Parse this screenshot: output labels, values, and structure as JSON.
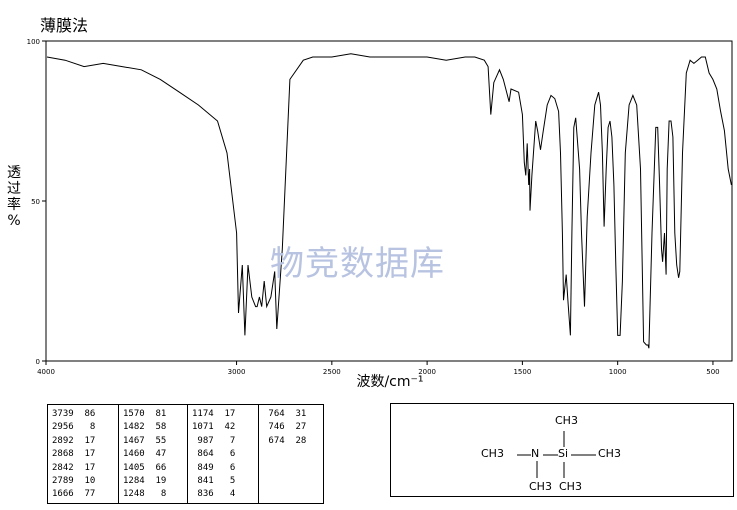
{
  "title": "薄膜法",
  "watermark": "物竞数据库",
  "chart_data": {
    "type": "line",
    "xlabel": "波数/cm⁻¹",
    "ylabel": "透过率%",
    "xlim": [
      4000,
      400
    ],
    "ylim": [
      0,
      100
    ],
    "x_ticks": [
      4000,
      3000,
      2500,
      2000,
      1500,
      1000,
      500
    ],
    "y_ticks": [
      0,
      50,
      100
    ],
    "grid": false,
    "series": [
      {
        "x": [
          3995,
          3900,
          3800,
          3700,
          3600,
          3500,
          3400,
          3300,
          3200,
          3100,
          3050,
          3000,
          2990,
          2970,
          2956,
          2940,
          2920,
          2900,
          2892,
          2880,
          2868,
          2855,
          2842,
          2820,
          2800,
          2789,
          2760,
          2720,
          2650,
          2600,
          2500,
          2400,
          2300,
          2200,
          2100,
          2000,
          1900,
          1800,
          1750,
          1700,
          1680,
          1666,
          1650,
          1620,
          1600,
          1570,
          1560,
          1520,
          1500,
          1490,
          1482,
          1475,
          1467,
          1462,
          1460,
          1450,
          1430,
          1420,
          1405,
          1390,
          1370,
          1350,
          1330,
          1310,
          1300,
          1290,
          1284,
          1270,
          1260,
          1248,
          1240,
          1230,
          1220,
          1200,
          1190,
          1174,
          1160,
          1140,
          1120,
          1100,
          1090,
          1080,
          1071,
          1060,
          1050,
          1040,
          1030,
          1020,
          1010,
          1000,
          987,
          975,
          960,
          940,
          920,
          900,
          880,
          864,
          849,
          841,
          836,
          820,
          800,
          790,
          780,
          770,
          764,
          754,
          746,
          740,
          730,
          720,
          710,
          700,
          690,
          680,
          674,
          660,
          640,
          620,
          600,
          580,
          560,
          540,
          520,
          500,
          480,
          460,
          440,
          420,
          403
        ],
        "y": [
          95,
          94,
          92,
          93,
          92,
          91,
          88,
          84,
          80,
          75,
          65,
          40,
          15,
          30,
          8,
          30,
          20,
          17,
          17,
          20,
          17,
          25,
          17,
          20,
          28,
          10,
          35,
          88,
          94,
          95,
          95,
          96,
          95,
          95,
          95,
          95,
          94,
          95,
          95,
          94,
          92,
          77,
          87,
          91,
          88,
          81,
          85,
          84,
          77,
          62,
          58,
          68,
          55,
          60,
          47,
          58,
          75,
          72,
          66,
          72,
          80,
          83,
          82,
          78,
          65,
          40,
          19,
          27,
          18,
          8,
          40,
          73,
          76,
          60,
          40,
          17,
          45,
          65,
          80,
          84,
          80,
          65,
          42,
          60,
          73,
          75,
          70,
          55,
          30,
          8,
          8,
          25,
          65,
          80,
          83,
          80,
          60,
          6,
          5,
          5,
          4,
          40,
          73,
          73,
          55,
          35,
          31,
          40,
          27,
          60,
          75,
          75,
          70,
          40,
          30,
          26,
          28,
          65,
          90,
          94,
          93,
          94,
          95,
          95,
          90,
          88,
          85,
          78,
          72,
          60,
          55
        ]
      }
    ],
    "peaks": [
      [
        3739,
        86
      ],
      [
        2956,
        8
      ],
      [
        2892,
        17
      ],
      [
        2868,
        17
      ],
      [
        2842,
        17
      ],
      [
        2789,
        10
      ],
      [
        1666,
        77
      ],
      [
        1570,
        81
      ],
      [
        1482,
        58
      ],
      [
        1467,
        55
      ],
      [
        1460,
        47
      ],
      [
        1405,
        66
      ],
      [
        1284,
        19
      ],
      [
        1248,
        8
      ],
      [
        1174,
        17
      ],
      [
        1071,
        42
      ],
      [
        987,
        7
      ],
      [
        864,
        6
      ],
      [
        849,
        6
      ],
      [
        841,
        5
      ],
      [
        836,
        4
      ],
      [
        764,
        31
      ],
      [
        746,
        27
      ],
      [
        674,
        28
      ]
    ]
  },
  "peak_columns": [
    [
      "3739  86",
      "2956   8",
      "2892  17",
      "2868  17",
      "2842  17",
      "2789  10",
      "1666  77"
    ],
    [
      "1570  81",
      "1482  58",
      "1467  55",
      "1460  47",
      "1405  66",
      "1284  19",
      "1248   8"
    ],
    [
      "1174  17",
      "1071  42",
      " 987   7",
      " 864   6",
      " 849   6",
      " 841   5",
      " 836   4"
    ],
    [
      " 764  31",
      " 746  27",
      " 674  28"
    ]
  ],
  "structure": {
    "ch3_top": "CH3",
    "ch3_left": "CH3",
    "n": "N",
    "si": "Si",
    "ch3_right": "CH3",
    "ch3_bottom_left": "CH3",
    "ch3_bottom_right": "CH3"
  }
}
